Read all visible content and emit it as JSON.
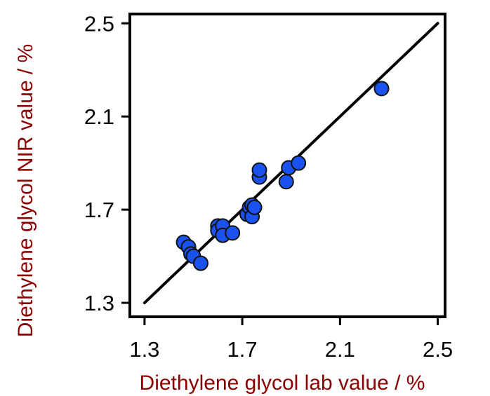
{
  "chart_data": {
    "type": "scatter",
    "title": "",
    "xlabel": "Diethylene glycol lab value / %",
    "ylabel": "Diethylene glycol NIR value / %",
    "xlim": [
      1.24,
      2.53
    ],
    "ylim": [
      1.24,
      2.54
    ],
    "xticks": [
      "1.3",
      "1.7",
      "2.1",
      "2.5"
    ],
    "yticks": [
      "1.3",
      "1.7",
      "2.1",
      "2.5"
    ],
    "grid": false,
    "legend": "none",
    "marker_color": "#1a52f0",
    "marker_edge_color": "#111111",
    "label_color": "#8b0000",
    "series": [
      {
        "x": [
          1.46,
          1.48,
          1.49,
          1.5,
          1.53,
          1.6,
          1.6,
          1.62,
          1.62,
          1.66,
          1.72,
          1.73,
          1.74,
          1.74,
          1.75,
          1.77,
          1.77,
          1.88,
          1.89,
          1.93,
          2.27
        ],
        "y": [
          1.56,
          1.54,
          1.51,
          1.5,
          1.47,
          1.63,
          1.61,
          1.63,
          1.59,
          1.6,
          1.68,
          1.71,
          1.72,
          1.67,
          1.71,
          1.84,
          1.87,
          1.82,
          1.88,
          1.9,
          2.22
        ]
      }
    ],
    "reference_line": {
      "x": [
        1.3,
        2.5
      ],
      "y": [
        1.3,
        2.5
      ]
    }
  }
}
